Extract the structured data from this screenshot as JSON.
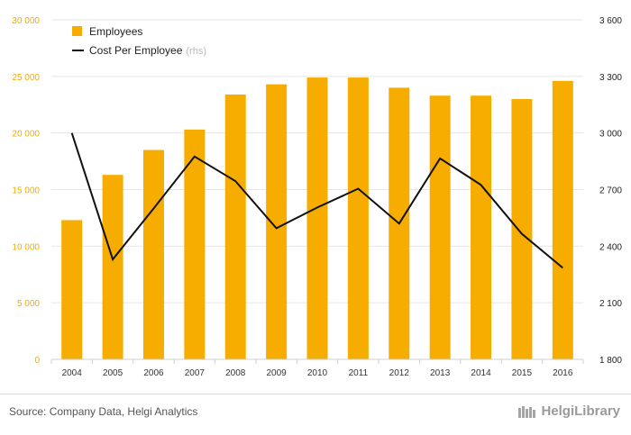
{
  "chart_data": {
    "type": "bar+line",
    "categories": [
      "2004",
      "2005",
      "2006",
      "2007",
      "2008",
      "2009",
      "2010",
      "2011",
      "2012",
      "2013",
      "2014",
      "2015",
      "2016"
    ],
    "series": [
      {
        "name": "Employees",
        "type": "bar",
        "axis": "left",
        "color": "#f7ad00",
        "values": [
          12300,
          16300,
          18500,
          20300,
          23400,
          24300,
          24900,
          24900,
          24000,
          23300,
          23300,
          23000,
          24600
        ]
      },
      {
        "name": "Cost Per Employee",
        "name_suffix": "(rhs)",
        "type": "line",
        "axis": "right",
        "color": "#111111",
        "values": [
          3000,
          2330,
          2600,
          2875,
          2745,
          2495,
          2605,
          2705,
          2520,
          2865,
          2725,
          2465,
          2285
        ]
      }
    ],
    "left_axis": {
      "ylim": [
        0,
        30000
      ],
      "ticks": [
        0,
        5000,
        10000,
        15000,
        20000,
        25000,
        30000
      ],
      "tick_labels": [
        "0",
        "5 000",
        "10 000",
        "15 000",
        "20 000",
        "25 000",
        "30 000"
      ],
      "color": "#f0ab00"
    },
    "right_axis": {
      "ylim": [
        1800,
        3600
      ],
      "ticks": [
        1800,
        2100,
        2400,
        2700,
        3000,
        3300,
        3600
      ],
      "tick_labels": [
        "1 800",
        "2 100",
        "2 400",
        "2 700",
        "3 000",
        "3 300",
        "3 600"
      ]
    },
    "grid": true,
    "legend_position": "top-left"
  },
  "footer": {
    "source": "Source: Company Data, Helgi Analytics",
    "logo_text": "HelgiLibrary"
  }
}
